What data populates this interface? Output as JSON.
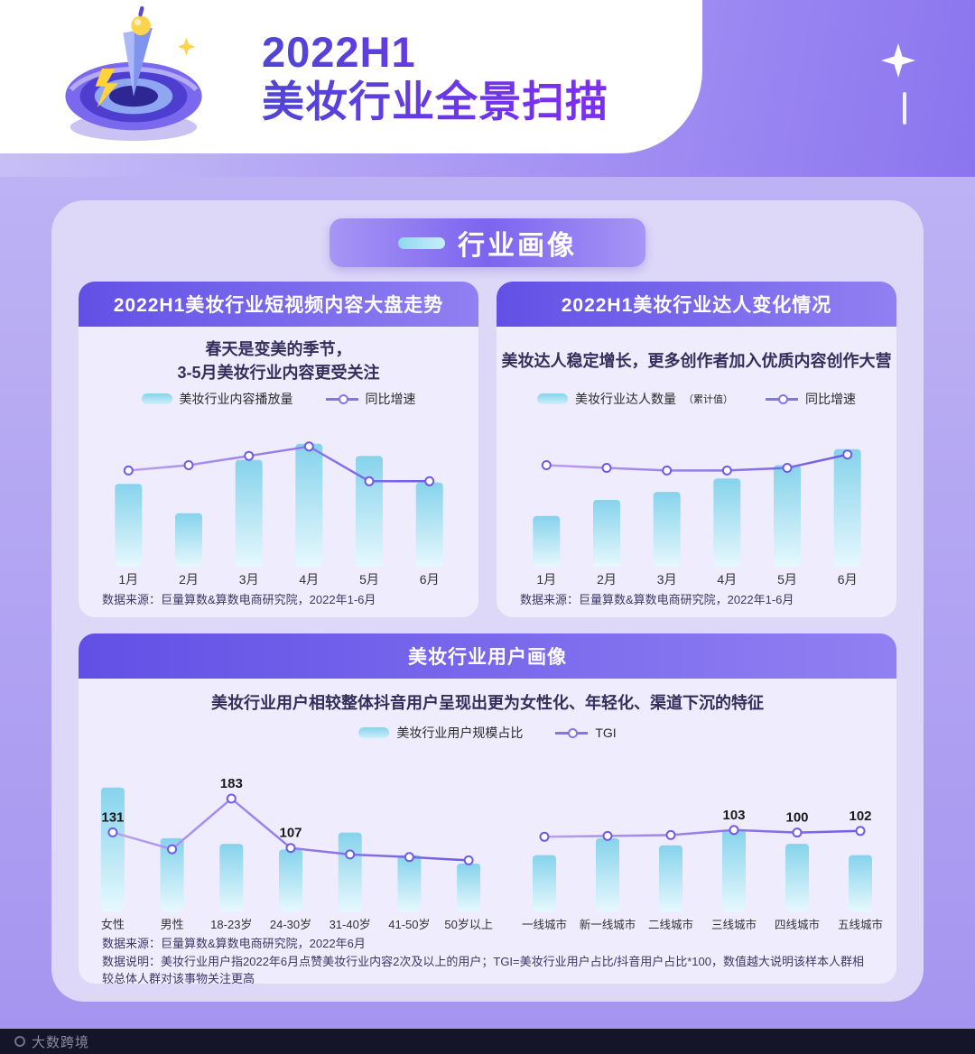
{
  "header": {
    "title_line1": "2022H1",
    "title_line2": "美妆行业全景扫描"
  },
  "section_banner": {
    "title": "行业画像"
  },
  "cards": {
    "video_trend": {
      "title": "2022H1美妆行业短视频内容大盘走势",
      "subtitle_line1": "春天是变美的季节，",
      "subtitle_line2": "3-5月美妆行业内容更受关注",
      "legend_bar": "美妆行业内容播放量",
      "legend_line": "同比增速",
      "source": "数据来源：巨量算数&算数电商研究院，2022年1-6月"
    },
    "creator_change": {
      "title": "2022H1美妆行业达人变化情况",
      "subtitle": "美妆达人稳定增长，更多创作者加入优质内容创作大营",
      "legend_bar": "美妆行业达人数量",
      "legend_bar_note": "（累计值）",
      "legend_line": "同比增速",
      "source": "数据来源：巨量算数&算数电商研究院，2022年1-6月"
    },
    "user_profile": {
      "title": "美妆行业用户画像",
      "subtitle": "美妆行业用户相较整体抖音用户呈现出更为女性化、年轻化、渠道下沉的特征",
      "legend_bar": "美妆行业用户规模占比",
      "legend_line": "TGI",
      "source": "数据来源：巨量算数&算数电商研究院，2022年6月",
      "note": "数据说明：美妆行业用户指2022年6月点赞美妆行业内容2次及以上的用户；TGI=美妆行业用户占比/抖音用户占比*100，数值越大说明该样本人群相较总体人群对该事物关注更高"
    }
  },
  "footer": {
    "watermark": "大数跨境"
  },
  "colors": {
    "bar_top": "#86d3ec",
    "bar_bottom": "#e6f8fd",
    "line_start": "#bb9ef1",
    "line_end": "#6f5be6",
    "header_band": "#6250e6",
    "background": "#b4a9f2"
  },
  "chart_data": [
    {
      "id": "video-trend-chart",
      "type": "bar",
      "title": "2022H1美妆行业短视频内容大盘走势",
      "categories": [
        "1月",
        "2月",
        "3月",
        "4月",
        "5月",
        "6月"
      ],
      "series": [
        {
          "name": "美妆行业内容播放量",
          "type": "bar",
          "values": [
            62,
            40,
            80,
            92,
            83,
            63
          ]
        },
        {
          "name": "同比增速",
          "type": "line",
          "values": [
            72,
            76,
            83,
            90,
            64,
            64
          ]
        }
      ],
      "unit": "relative",
      "legend_position": "top"
    },
    {
      "id": "creator-chart",
      "type": "bar",
      "title": "2022H1美妆行业达人变化情况",
      "categories": [
        "1月",
        "2月",
        "3月",
        "4月",
        "5月",
        "6月"
      ],
      "series": [
        {
          "name": "美妆行业达人数量（累计值）",
          "type": "bar",
          "values": [
            38,
            50,
            56,
            66,
            76,
            88
          ]
        },
        {
          "name": "同比增速",
          "type": "line",
          "values": [
            76,
            74,
            72,
            72,
            74,
            84
          ]
        }
      ],
      "unit": "relative",
      "legend_position": "top"
    },
    {
      "id": "user-demo-chart",
      "type": "bar",
      "title": "美妆行业用户画像（性别/年龄）",
      "categories": [
        "女性",
        "男性",
        "18-23岁",
        "24-30岁",
        "31-40岁",
        "41-50岁",
        "50岁以上"
      ],
      "series": [
        {
          "name": "美妆行业用户规模占比",
          "type": "bar",
          "values": [
            88,
            52,
            48,
            44,
            56,
            40,
            34
          ]
        },
        {
          "name": "TGI",
          "type": "line",
          "values": [
            131,
            105,
            183,
            107,
            97,
            93,
            88
          ]
        }
      ],
      "point_labels": [
        "131",
        "",
        "183",
        "107",
        "",
        "",
        ""
      ],
      "unit": "bar values relative; line = TGI",
      "legend_position": "top"
    },
    {
      "id": "user-city-chart",
      "type": "bar",
      "title": "美妆行业用户画像（城市线级）",
      "categories": [
        "一线城市",
        "新一线城市",
        "二线城市",
        "三线城市",
        "四线城市",
        "五线城市"
      ],
      "series": [
        {
          "name": "美妆行业用户规模占比",
          "type": "bar",
          "values": [
            40,
            52,
            47,
            58,
            48,
            40
          ]
        },
        {
          "name": "TGI",
          "type": "line",
          "values": [
            95,
            96,
            97,
            103,
            100,
            102
          ]
        }
      ],
      "point_labels": [
        "",
        "",
        "",
        "103",
        "100",
        "102"
      ],
      "unit": "bar values relative; line = TGI",
      "legend_position": "top"
    }
  ]
}
